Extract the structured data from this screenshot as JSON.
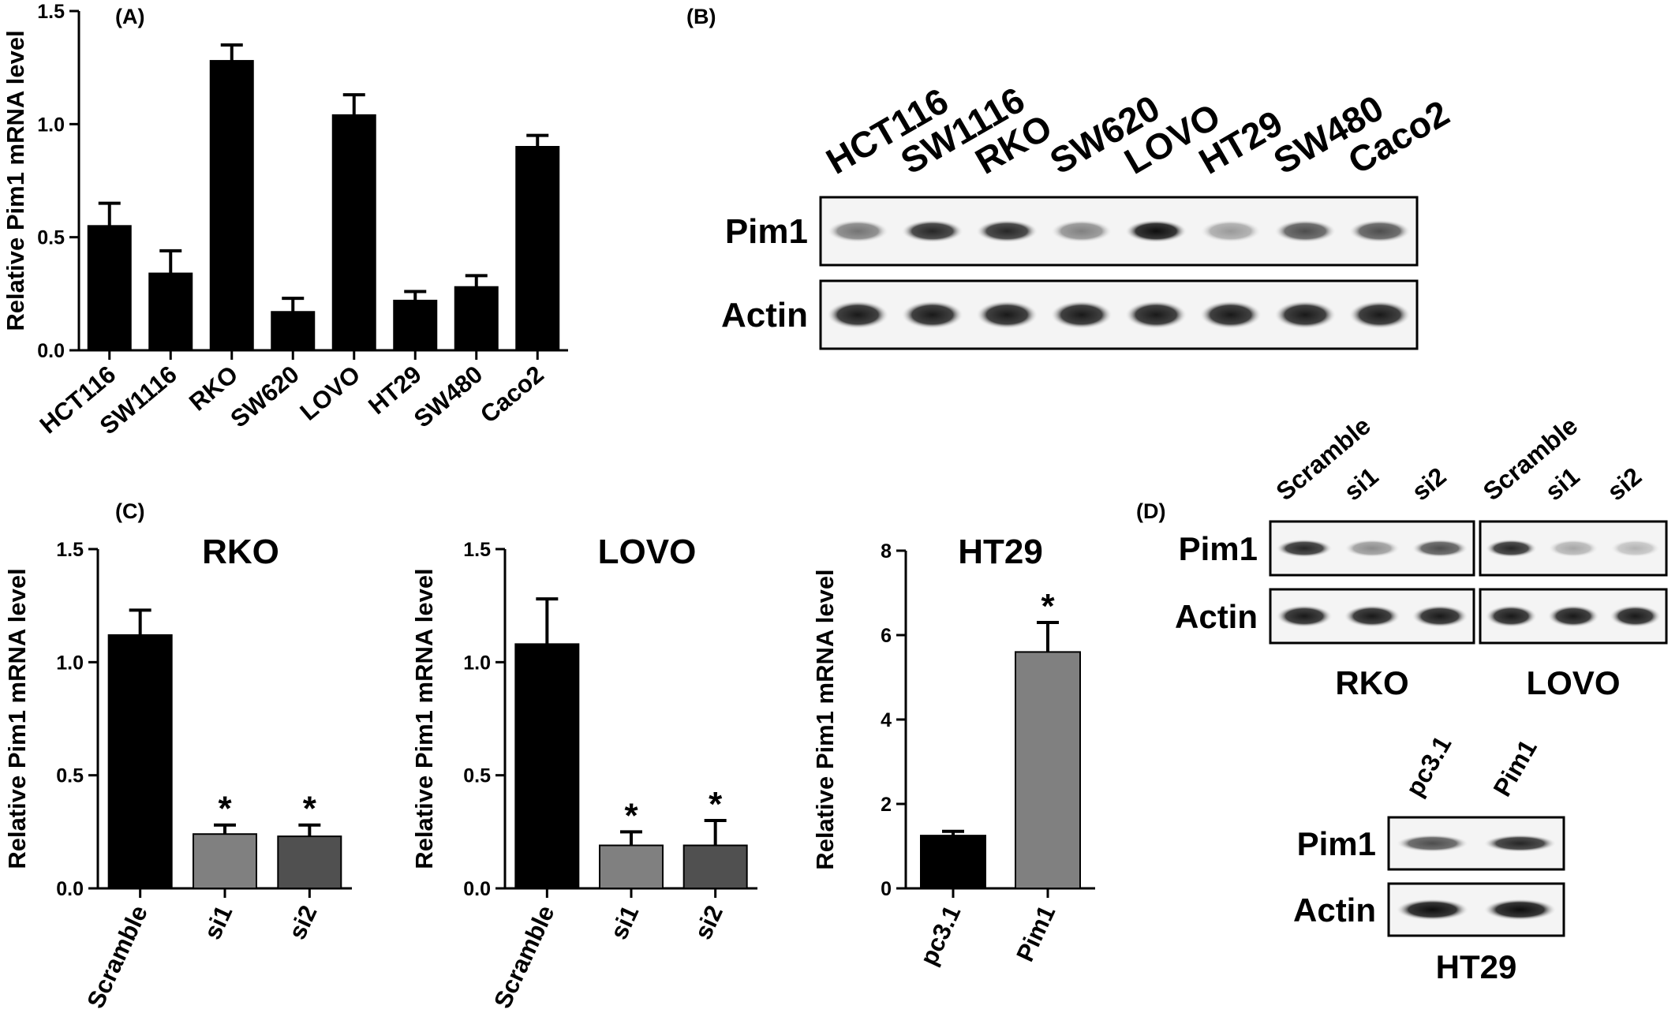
{
  "panels": {
    "A": "(A)",
    "B": "(B)",
    "C": "(C)",
    "D": "(D)"
  },
  "chart_data": [
    {
      "id": "A",
      "type": "bar",
      "title": "",
      "xlabel": "",
      "ylabel": "Relative Pim1 mRNA level",
      "ylim": [
        0,
        1.5
      ],
      "yticks": [
        "0.0",
        "0.5",
        "1.0",
        "1.5"
      ],
      "categories": [
        "HCT116",
        "SW1116",
        "RKO",
        "SW620",
        "LOVO",
        "HT29",
        "SW480",
        "Caco2"
      ],
      "values": [
        0.55,
        0.34,
        1.28,
        0.17,
        1.04,
        0.22,
        0.28,
        0.9
      ],
      "errors": [
        0.1,
        0.1,
        0.07,
        0.06,
        0.09,
        0.04,
        0.05,
        0.05
      ],
      "colors": [
        "#000000",
        "#000000",
        "#000000",
        "#000000",
        "#000000",
        "#000000",
        "#000000",
        "#000000"
      ],
      "stars": [
        "",
        "",
        "",
        "",
        "",
        "",
        "",
        ""
      ],
      "grid": false
    },
    {
      "id": "C1",
      "type": "bar",
      "title": "RKO",
      "xlabel": "",
      "ylabel": "Relative Pim1 mRNA level",
      "ylim": [
        0,
        1.5
      ],
      "yticks": [
        "0.0",
        "0.5",
        "1.0",
        "1.5"
      ],
      "categories": [
        "Scramble",
        "si1",
        "si2"
      ],
      "values": [
        1.12,
        0.24,
        0.23
      ],
      "errors": [
        0.11,
        0.04,
        0.05
      ],
      "colors": [
        "#000000",
        "#808080",
        "#505050"
      ],
      "stars": [
        "",
        "*",
        "*"
      ],
      "grid": false
    },
    {
      "id": "C2",
      "type": "bar",
      "title": "LOVO",
      "xlabel": "",
      "ylabel": "Relative Pim1 mRNA level",
      "ylim": [
        0,
        1.5
      ],
      "yticks": [
        "0.0",
        "0.5",
        "1.0",
        "1.5"
      ],
      "categories": [
        "Scramble",
        "si1",
        "si2"
      ],
      "values": [
        1.08,
        0.19,
        0.19
      ],
      "errors": [
        0.2,
        0.06,
        0.11
      ],
      "colors": [
        "#000000",
        "#808080",
        "#505050"
      ],
      "stars": [
        "",
        "*",
        "*"
      ],
      "grid": false
    },
    {
      "id": "C3",
      "type": "bar",
      "title": "HT29",
      "xlabel": "",
      "ylabel": "Relative Pim1 mRNA level",
      "ylim": [
        0,
        8
      ],
      "yticks": [
        "0",
        "2",
        "4",
        "6",
        "8"
      ],
      "categories": [
        "pc3.1",
        "Pim1"
      ],
      "values": [
        1.25,
        5.6
      ],
      "errors": [
        0.1,
        0.7
      ],
      "colors": [
        "#000000",
        "#808080"
      ],
      "stars": [
        "",
        "*"
      ],
      "grid": false
    }
  ],
  "blots": {
    "B": {
      "lanes": [
        "HCT116",
        "SW1116",
        "RKO",
        "SW620",
        "LOVO",
        "HT29",
        "SW480",
        "Caco2"
      ],
      "rows": [
        "Pim1",
        "Actin"
      ],
      "pim1_intensity": [
        0.55,
        0.85,
        0.85,
        0.5,
        0.95,
        0.4,
        0.7,
        0.7
      ],
      "actin_intensity": [
        0.9,
        0.9,
        0.9,
        0.9,
        0.9,
        0.9,
        0.9,
        0.9
      ]
    },
    "D_RKO": {
      "lanes": [
        "Scramble",
        "si1",
        "si2"
      ],
      "rows": [
        "Pim1",
        "Actin"
      ],
      "cell": "RKO",
      "pim1_intensity": [
        0.85,
        0.45,
        0.7
      ],
      "actin_intensity": [
        0.9,
        0.9,
        0.9
      ]
    },
    "D_LOVO": {
      "lanes": [
        "Scramble",
        "si1",
        "si2"
      ],
      "rows": [
        "Pim1",
        "Actin"
      ],
      "cell": "LOVO",
      "pim1_intensity": [
        0.85,
        0.35,
        0.3
      ],
      "actin_intensity": [
        0.9,
        0.9,
        0.9
      ]
    },
    "D_HT29": {
      "lanes": [
        "pc3.1",
        "Pim1"
      ],
      "rows": [
        "Pim1",
        "Actin"
      ],
      "cell": "HT29",
      "pim1_intensity": [
        0.7,
        0.85
      ],
      "actin_intensity": [
        0.95,
        0.95
      ]
    }
  }
}
